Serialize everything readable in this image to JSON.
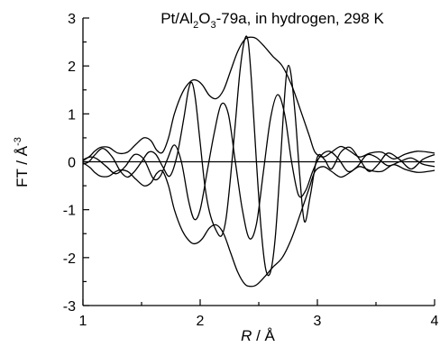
{
  "chart_data": {
    "type": "line",
    "title": {
      "prefix": "Pt/Al",
      "sub1": "2",
      "mid": "O",
      "sub2": "3",
      "suffix": "-79a, in hydrogen, 298 K"
    },
    "xlabel": {
      "var": "R",
      "unit": " / Å"
    },
    "ylabel": {
      "main": "FT / Å",
      "sup": "-3"
    },
    "xlim": [
      1,
      4
    ],
    "ylim": [
      -3,
      3
    ],
    "xticks": [
      1,
      2,
      3,
      4
    ],
    "yticks": [
      -3,
      -2,
      -1,
      0,
      1,
      2,
      3
    ],
    "grid": false,
    "series": [
      {
        "role": "magnitude",
        "x": [
          1.0,
          1.06,
          1.1,
          1.15,
          1.22,
          1.3,
          1.38,
          1.45,
          1.52,
          1.58,
          1.63,
          1.68,
          1.73,
          1.78,
          1.85,
          1.92,
          1.97,
          2.02,
          2.08,
          2.14,
          2.2,
          2.26,
          2.32,
          2.38,
          2.43,
          2.48,
          2.55,
          2.62,
          2.7,
          2.78,
          2.86,
          2.93,
          2.98,
          3.05,
          3.12,
          3.2,
          3.28,
          3.36,
          3.45,
          3.55,
          3.65,
          3.75,
          3.85,
          3.95,
          4.0
        ],
        "y": [
          0.02,
          0.12,
          0.22,
          0.3,
          0.3,
          0.18,
          0.2,
          0.36,
          0.5,
          0.44,
          0.24,
          0.2,
          0.5,
          1.0,
          1.45,
          1.68,
          1.7,
          1.6,
          1.38,
          1.32,
          1.5,
          1.9,
          2.3,
          2.55,
          2.6,
          2.57,
          2.4,
          2.2,
          2.0,
          1.6,
          1.05,
          0.55,
          0.2,
          0.1,
          0.2,
          0.32,
          0.22,
          0.1,
          0.18,
          0.2,
          0.06,
          0.16,
          0.22,
          0.2,
          0.18
        ]
      },
      {
        "role": "magnitude-negative",
        "x": [
          1.0,
          1.06,
          1.1,
          1.15,
          1.22,
          1.3,
          1.38,
          1.45,
          1.52,
          1.58,
          1.63,
          1.68,
          1.73,
          1.78,
          1.85,
          1.92,
          1.97,
          2.02,
          2.08,
          2.14,
          2.2,
          2.26,
          2.32,
          2.38,
          2.43,
          2.48,
          2.55,
          2.62,
          2.7,
          2.78,
          2.86,
          2.93,
          2.98,
          3.05,
          3.12,
          3.2,
          3.28,
          3.36,
          3.45,
          3.55,
          3.65,
          3.75,
          3.85,
          3.95,
          4.0
        ],
        "y": [
          -0.02,
          -0.12,
          -0.22,
          -0.3,
          -0.3,
          -0.18,
          -0.2,
          -0.36,
          -0.5,
          -0.44,
          -0.24,
          -0.2,
          -0.5,
          -1.0,
          -1.45,
          -1.68,
          -1.7,
          -1.6,
          -1.38,
          -1.32,
          -1.5,
          -1.9,
          -2.3,
          -2.55,
          -2.6,
          -2.57,
          -2.4,
          -2.2,
          -2.0,
          -1.6,
          -1.05,
          -0.55,
          -0.2,
          -0.1,
          -0.2,
          -0.32,
          -0.22,
          -0.1,
          -0.18,
          -0.2,
          -0.06,
          -0.16,
          -0.22,
          -0.2,
          -0.18
        ]
      },
      {
        "role": "imaginary",
        "x": [
          1.0,
          1.05,
          1.1,
          1.17,
          1.25,
          1.32,
          1.38,
          1.44,
          1.5,
          1.56,
          1.62,
          1.68,
          1.74,
          1.8,
          1.86,
          1.9,
          1.93,
          1.96,
          2.0,
          2.04,
          2.08,
          2.13,
          2.18,
          2.22,
          2.26,
          2.3,
          2.34,
          2.38,
          2.41,
          2.44,
          2.48,
          2.52,
          2.56,
          2.6,
          2.64,
          2.68,
          2.71,
          2.74,
          2.77,
          2.81,
          2.85,
          2.89,
          2.94,
          3.0,
          3.06,
          3.12,
          3.2,
          3.28,
          3.36,
          3.44,
          3.52,
          3.6,
          3.7,
          3.8,
          3.9,
          4.0
        ],
        "y": [
          -0.05,
          0.0,
          0.14,
          0.28,
          0.1,
          -0.2,
          -0.32,
          -0.2,
          0.0,
          0.2,
          0.16,
          -0.1,
          -0.3,
          0.1,
          0.9,
          1.5,
          1.65,
          1.3,
          0.4,
          -0.5,
          -1.05,
          -1.4,
          -1.55,
          -1.2,
          -0.3,
          0.8,
          1.9,
          2.55,
          2.5,
          1.6,
          0.0,
          -1.4,
          -2.25,
          -2.3,
          -1.6,
          -0.2,
          1.0,
          1.9,
          1.9,
          1.0,
          -0.3,
          -1.25,
          -0.7,
          0.1,
          0.05,
          -0.15,
          0.2,
          0.3,
          0.05,
          -0.2,
          -0.05,
          0.18,
          0.05,
          -0.15,
          0.05,
          0.15
        ]
      },
      {
        "role": "real",
        "x": [
          1.0,
          1.06,
          1.12,
          1.2,
          1.28,
          1.36,
          1.44,
          1.52,
          1.6,
          1.66,
          1.72,
          1.78,
          1.84,
          1.9,
          1.95,
          2.0,
          2.06,
          2.12,
          2.18,
          2.24,
          2.3,
          2.36,
          2.42,
          2.48,
          2.54,
          2.6,
          2.66,
          2.72,
          2.78,
          2.84,
          2.9,
          2.96,
          3.02,
          3.1,
          3.18,
          3.26,
          3.34,
          3.42,
          3.5,
          3.6,
          3.7,
          3.8,
          3.9,
          4.0
        ],
        "y": [
          0.04,
          0.1,
          0.06,
          -0.1,
          -0.25,
          -0.1,
          0.15,
          0.05,
          -0.35,
          -0.3,
          0.05,
          0.35,
          0.0,
          -0.8,
          -1.2,
          -1.0,
          -0.2,
          0.6,
          1.2,
          1.0,
          0.0,
          -1.0,
          -1.6,
          -1.3,
          -0.2,
          0.9,
          1.4,
          1.0,
          0.0,
          -0.7,
          -0.6,
          -0.2,
          0.1,
          0.22,
          0.06,
          -0.2,
          -0.1,
          0.14,
          0.1,
          -0.08,
          0.0,
          0.08,
          -0.05,
          -0.1
        ]
      }
    ],
    "zero_line": true
  }
}
